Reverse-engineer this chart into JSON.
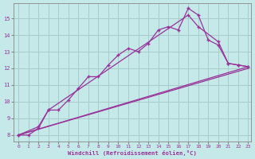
{
  "bg_color": "#c5e8e8",
  "grid_color": "#a8cccc",
  "line_color": "#993399",
  "marker_color": "#993399",
  "xlabel": "Windchill (Refroidissement éolien,°C)",
  "xlabel_color": "#993399",
  "tick_color": "#993399",
  "xmin": -0.5,
  "xmax": 23.3,
  "ymin": 7.6,
  "ymax": 15.9,
  "yticks": [
    8,
    9,
    10,
    11,
    12,
    13,
    14,
    15
  ],
  "xticks": [
    0,
    1,
    2,
    3,
    4,
    5,
    6,
    7,
    8,
    9,
    10,
    11,
    12,
    13,
    14,
    15,
    16,
    17,
    18,
    19,
    20,
    21,
    22,
    23
  ],
  "line1_x": [
    0,
    1,
    2,
    3,
    4,
    5,
    6,
    7,
    8,
    9,
    10,
    11,
    12,
    13,
    14,
    15,
    16,
    17,
    18,
    19,
    20,
    21,
    22,
    23
  ],
  "line1_y": [
    8.0,
    8.0,
    8.4,
    9.5,
    9.5,
    10.1,
    10.8,
    11.5,
    11.5,
    12.2,
    12.8,
    13.2,
    13.0,
    13.5,
    14.3,
    14.5,
    14.3,
    15.6,
    15.2,
    13.7,
    13.4,
    12.3,
    12.2,
    12.1
  ],
  "line2_x": [
    0,
    2,
    3,
    17,
    18,
    20,
    21,
    22,
    23
  ],
  "line2_y": [
    8.0,
    8.5,
    9.5,
    15.2,
    14.5,
    13.6,
    12.3,
    12.2,
    12.1
  ],
  "line3_x": [
    0,
    23
  ],
  "line3_y": [
    8.0,
    12.0
  ],
  "line4_x": [
    0,
    23
  ],
  "line4_y": [
    8.0,
    12.1
  ]
}
